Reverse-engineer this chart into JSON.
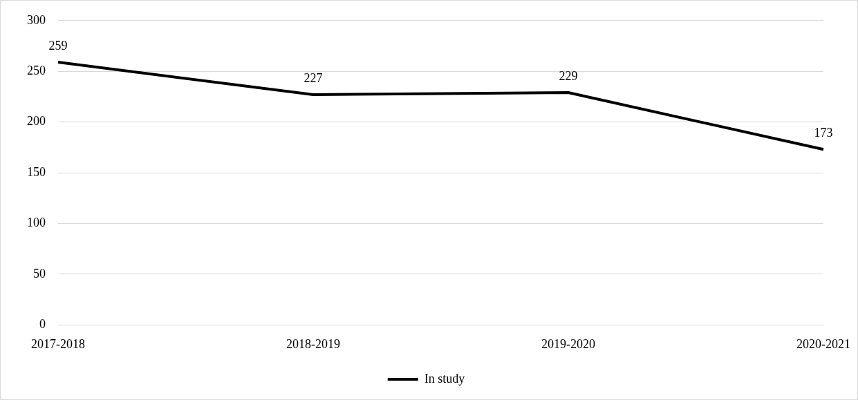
{
  "chart_data": {
    "type": "line",
    "categories": [
      "2017-2018",
      "2018-2019",
      "2019-2020",
      "2020-2021"
    ],
    "series": [
      {
        "name": "In study",
        "color": "#000000",
        "values": [
          259,
          227,
          229,
          173
        ]
      }
    ],
    "ylim": [
      0,
      300
    ],
    "yticks": [
      0,
      50,
      100,
      150,
      200,
      250,
      300
    ],
    "grid": "y",
    "legend": "bottom",
    "marker": "none",
    "line_style": "solid",
    "data_labels": true
  }
}
